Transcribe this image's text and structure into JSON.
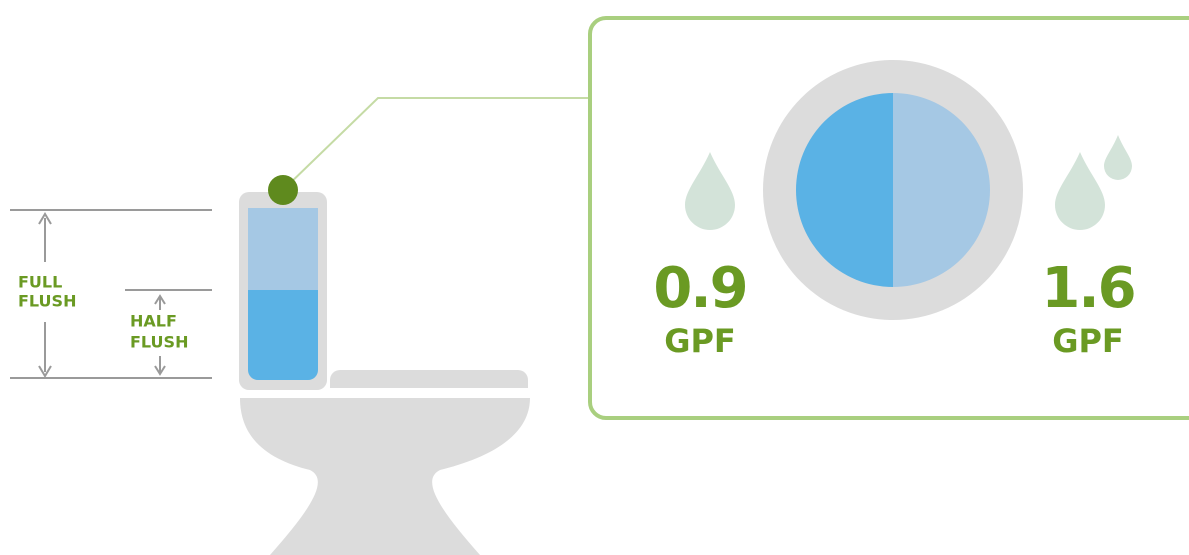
{
  "tank_labels": [
    {
      "lines": [
        "FULL",
        "FLUSH"
      ]
    },
    {
      "lines": [
        "HALF",
        "FLUSH"
      ]
    }
  ],
  "button_options": [
    {
      "value": 0.9,
      "unit": "GPF"
    },
    {
      "value": 1.6,
      "unit": "GPF"
    }
  ]
}
